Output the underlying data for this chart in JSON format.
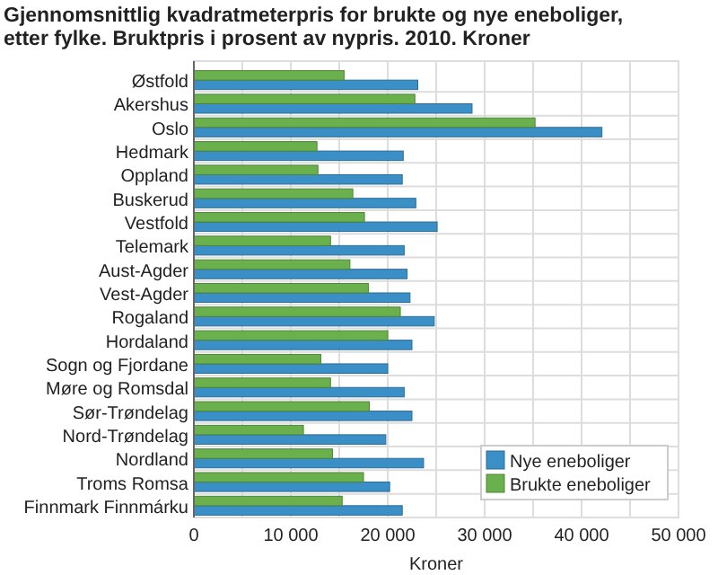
{
  "chart_data": {
    "type": "bar",
    "orientation": "horizontal",
    "title": "Gjennomsnittlig kvadratmeterpris for brukte og nye eneboliger, etter fylke. Bruktpris i prosent av nypris. 2010. Kroner",
    "xlabel": "Kroner",
    "categories": [
      "Østfold",
      "Akershus",
      "Oslo",
      "Hedmark",
      "Oppland",
      "Buskerud",
      "Vestfold",
      "Telemark",
      "Aust-Agder",
      "Vest-Agder",
      "Rogaland",
      "Hordaland",
      "Sogn og Fjordane",
      "Møre og Romsdal",
      "Sør-Trøndelag",
      "Nord-Trøndelag",
      "Nordland",
      "Troms Romsa",
      "Finnmark Finnmárku"
    ],
    "series": [
      {
        "name": "Nye eneboliger",
        "color": "#3a8fc7",
        "values": [
          23100,
          28700,
          42100,
          21600,
          21500,
          22900,
          25100,
          21700,
          22000,
          22300,
          24800,
          22500,
          20000,
          21700,
          22500,
          19800,
          23700,
          20200,
          21500
        ]
      },
      {
        "name": "Brukte eneboliger",
        "color": "#6ab04c",
        "values": [
          15500,
          22800,
          35200,
          12700,
          12800,
          16400,
          17600,
          14100,
          16100,
          18000,
          21300,
          20000,
          13100,
          14100,
          18100,
          11300,
          14300,
          17500,
          15300
        ]
      }
    ],
    "xlim": [
      0,
      50000
    ],
    "xticks": [
      0,
      {
        "value": 5000,
        "label": null
      },
      {
        "value": 10000,
        "label": "10 000"
      },
      {
        "value": 15000,
        "label": null
      },
      {
        "value": 20000,
        "label": "20 000"
      },
      {
        "value": 25000,
        "label": null
      },
      {
        "value": 30000,
        "label": "30 000"
      },
      {
        "value": 35000,
        "label": null
      },
      {
        "value": 40000,
        "label": "40 000"
      },
      {
        "value": 45000,
        "label": null
      },
      {
        "value": 50000,
        "label": "50 000"
      }
    ],
    "grid": true,
    "legend": "bottom right"
  }
}
